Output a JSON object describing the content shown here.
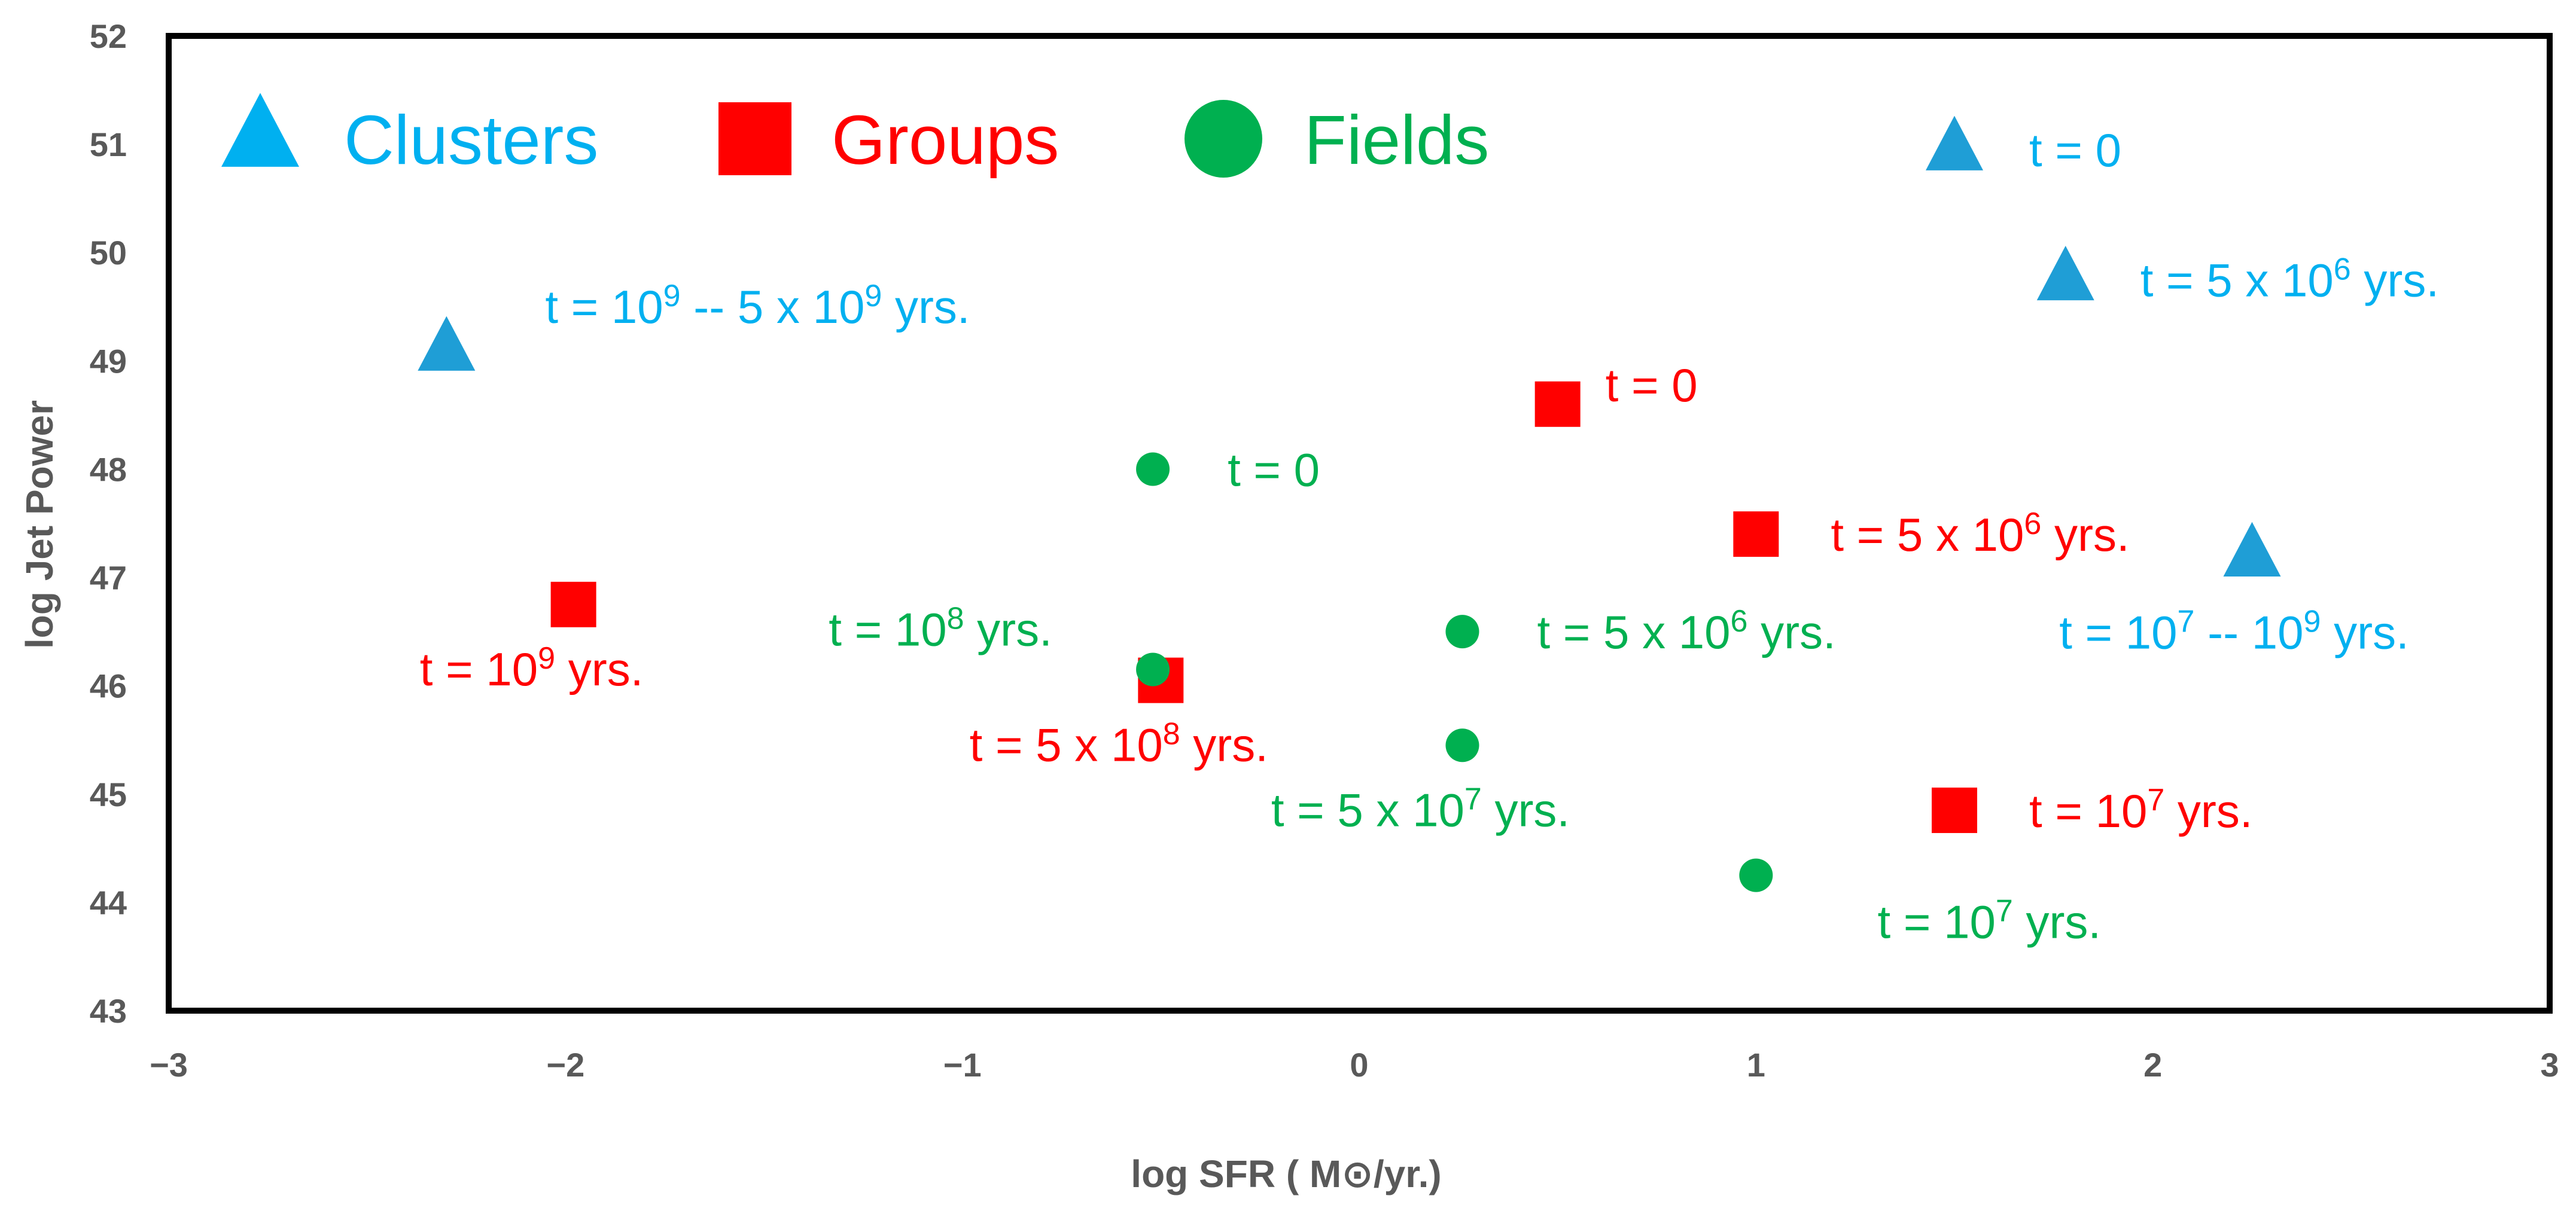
{
  "chart_data": {
    "type": "scatter",
    "title": "",
    "xlabel": "log SFR ( M⊙/yr.)",
    "ylabel": "log Jet Power",
    "xlim": [
      -3,
      3
    ],
    "ylim": [
      43,
      52
    ],
    "x_ticks": [
      "−3",
      "−2",
      "−1",
      "0",
      "1",
      "2",
      "3"
    ],
    "x_tick_values": [
      -3,
      -2,
      -1,
      0,
      1,
      2,
      3
    ],
    "y_ticks": [
      "43",
      "44",
      "45",
      "46",
      "47",
      "48",
      "49",
      "50",
      "51",
      "52"
    ],
    "y_tick_values": [
      43,
      44,
      45,
      46,
      47,
      48,
      49,
      50,
      51,
      52
    ],
    "grid": false,
    "legend_position": "top-left",
    "series": [
      {
        "name": "Clusters",
        "marker": "triangle",
        "color": "#00B0F0",
        "marker_color": "#1F9ED6",
        "points": [
          {
            "x": 1.5,
            "y": 50.95,
            "label": "t = 0",
            "label_parts": [
              [
                "t = 0",
                ""
              ]
            ],
            "anchor": "right"
          },
          {
            "x": 1.78,
            "y": 49.75,
            "label": "t = 5 x 10^6 yrs.",
            "label_parts": [
              [
                "t = 5 x 10",
                ""
              ],
              [
                "6",
                "sup"
              ],
              [
                " yrs.",
                ""
              ]
            ],
            "anchor": "right"
          },
          {
            "x": -2.3,
            "y": 49.1,
            "label": "t =  10^9 -- 5 x 10^9 yrs.",
            "label_parts": [
              [
                "t =  10",
                ""
              ],
              [
                "9",
                "sup"
              ],
              [
                " -- 5 x 10",
                ""
              ],
              [
                "9",
                "sup"
              ],
              [
                " yrs.",
                ""
              ]
            ],
            "anchor": "above-right"
          },
          {
            "x": 2.25,
            "y": 47.2,
            "label": "t = 10^7 -- 10^9 yrs.",
            "label_parts": [
              [
                "t = 10",
                ""
              ],
              [
                "7",
                "sup"
              ],
              [
                " -- 10",
                ""
              ],
              [
                "9",
                "sup"
              ],
              [
                " yrs.",
                ""
              ]
            ],
            "anchor": "below"
          }
        ]
      },
      {
        "name": "Groups",
        "marker": "square",
        "color": "#FF0000",
        "marker_color": "#FF0000",
        "points": [
          {
            "x": 0.5,
            "y": 48.6,
            "label": "t = 0",
            "label_parts": [
              [
                "t = 0",
                ""
              ]
            ],
            "anchor": "right-up"
          },
          {
            "x": 1.0,
            "y": 47.4,
            "label": "t = 5 x 10^6 yrs.",
            "label_parts": [
              [
                "t = 5 x 10",
                ""
              ],
              [
                "6",
                "sup"
              ],
              [
                " yrs.",
                ""
              ]
            ],
            "anchor": "right"
          },
          {
            "x": -1.98,
            "y": 46.75,
            "label": "t = 10^9 yrs.",
            "label_parts": [
              [
                "t = 10",
                ""
              ],
              [
                "9",
                "sup"
              ],
              [
                " yrs.",
                ""
              ]
            ],
            "anchor": "below-left"
          },
          {
            "x": -0.5,
            "y": 46.05,
            "label": "t = 5 x 10^8 yrs.",
            "label_parts": [
              [
                "t = 5 x 10",
                ""
              ],
              [
                "8",
                "sup"
              ],
              [
                " yrs.",
                ""
              ]
            ],
            "anchor": "below-left"
          },
          {
            "x": 1.5,
            "y": 44.85,
            "label": "t =  10^7 yrs.",
            "label_parts": [
              [
                "t =  10",
                ""
              ],
              [
                "7",
                "sup"
              ],
              [
                " yrs.",
                ""
              ]
            ],
            "anchor": "right"
          }
        ]
      },
      {
        "name": "Fields",
        "marker": "circle",
        "color": "#00B050",
        "marker_color": "#00B050",
        "points": [
          {
            "x": -0.52,
            "y": 48.0,
            "label": "t = 0",
            "label_parts": [
              [
                "t = 0",
                ""
              ]
            ],
            "anchor": "right"
          },
          {
            "x": -0.52,
            "y": 46.15,
            "label": "t = 10^8 yrs.",
            "label_parts": [
              [
                "t = 10",
                ""
              ],
              [
                "8",
                "sup"
              ],
              [
                " yrs.",
                ""
              ]
            ],
            "anchor": "left-up"
          },
          {
            "x": 0.26,
            "y": 46.5,
            "label": "t =  5 x 10^6 yrs.",
            "label_parts": [
              [
                "t =  5 x 10",
                ""
              ],
              [
                "6",
                "sup"
              ],
              [
                " yrs.",
                ""
              ]
            ],
            "anchor": "right"
          },
          {
            "x": 0.26,
            "y": 45.45,
            "label": "t = 5 x 10^7 yrs.",
            "label_parts": [
              [
                "t = 5 x 10",
                ""
              ],
              [
                "7",
                "sup"
              ],
              [
                " yrs.",
                ""
              ]
            ],
            "anchor": "below-left"
          },
          {
            "x": 1.0,
            "y": 44.25,
            "label": "t = 10^7 yrs.",
            "label_parts": [
              [
                "t = 10",
                ""
              ],
              [
                "7",
                "sup"
              ],
              [
                " yrs.",
                ""
              ]
            ],
            "anchor": "below-right"
          }
        ]
      }
    ]
  }
}
